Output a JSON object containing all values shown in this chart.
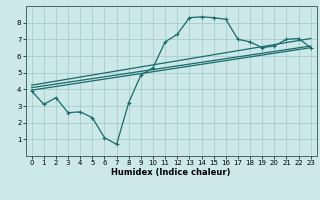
{
  "xlabel": "Humidex (Indice chaleur)",
  "bg_color": "#cce8e8",
  "grid_color": "#aacccc",
  "line_color": "#1a6b6b",
  "xlim": [
    -0.5,
    23.5
  ],
  "ylim": [
    0,
    9
  ],
  "xticks": [
    0,
    1,
    2,
    3,
    4,
    5,
    6,
    7,
    8,
    9,
    10,
    11,
    12,
    13,
    14,
    15,
    16,
    17,
    18,
    19,
    20,
    21,
    22,
    23
  ],
  "yticks": [
    1,
    2,
    3,
    4,
    5,
    6,
    7,
    8
  ],
  "main_curve_x": [
    0,
    1,
    2,
    3,
    4,
    5,
    6,
    7,
    8,
    9,
    10,
    11,
    12,
    13,
    14,
    15,
    16,
    17,
    18,
    19,
    20,
    21,
    22,
    23
  ],
  "main_curve_y": [
    3.9,
    3.1,
    3.5,
    2.6,
    2.65,
    2.3,
    1.1,
    0.7,
    3.2,
    4.85,
    5.3,
    6.85,
    7.3,
    8.3,
    8.35,
    8.3,
    8.2,
    7.0,
    6.85,
    6.5,
    6.6,
    7.0,
    7.05,
    6.5
  ],
  "line1_x": [
    0,
    23
  ],
  "line1_y": [
    3.95,
    6.5
  ],
  "line2_x": [
    0,
    23
  ],
  "line2_y": [
    4.1,
    6.6
  ],
  "line3_x": [
    0,
    23
  ],
  "line3_y": [
    4.25,
    7.05
  ]
}
